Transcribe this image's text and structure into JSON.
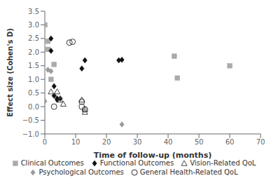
{
  "chart_data": {
    "type": "scatter",
    "title": "",
    "xlabel": "Time of follow-up (months)",
    "ylabel": "Effect size (Cohen's D)",
    "xlim": [
      0,
      70
    ],
    "ylim": [
      -1,
      3.5
    ],
    "xticks": [
      0,
      10,
      20,
      30,
      40,
      50,
      60,
      70
    ],
    "yticks": [
      {
        "value": -1,
        "label": "−1.0"
      },
      {
        "value": -0.5,
        "label": "−0.5"
      },
      {
        "value": 0,
        "label": "0.0"
      },
      {
        "value": 0.5,
        "label": "0.5"
      },
      {
        "value": 1,
        "label": "1.0"
      },
      {
        "value": 1.5,
        "label": "1.5"
      },
      {
        "value": 2,
        "label": "2.0"
      },
      {
        "value": 2.5,
        "label": "2.5"
      },
      {
        "value": 3,
        "label": "3.0"
      },
      {
        "value": 3.5,
        "label": "3.5"
      }
    ],
    "grid": false,
    "legend": "bottom",
    "series": [
      {
        "name": "Clinical Outcomes",
        "color": "#aaaaaa",
        "marker": "square",
        "x": [
          0,
          1,
          1,
          2,
          3,
          42,
          43,
          60
        ],
        "values": [
          3.0,
          2.4,
          2.1,
          1.0,
          1.55,
          1.85,
          1.05,
          1.5
        ]
      },
      {
        "name": "Functional Outcomes",
        "color": "#111111",
        "marker": "diamond",
        "x": [
          2,
          2,
          3,
          3,
          4,
          4,
          5,
          12,
          13,
          24,
          25
        ],
        "values": [
          2.5,
          2.05,
          0.75,
          0.4,
          0.3,
          0.25,
          0.3,
          1.4,
          1.7,
          1.7,
          1.72
        ]
      },
      {
        "name": "Vision-Related QoL",
        "color": "#444444",
        "marker": "open_triangle",
        "x": [
          2,
          4,
          5,
          6,
          12,
          13,
          13
        ],
        "values": [
          0.55,
          0.55,
          0.25,
          0.1,
          0.25,
          -0.1,
          -0.2
        ]
      },
      {
        "name": "Psychological Outcomes",
        "color": "#999999",
        "marker": "diamond",
        "x": [
          0,
          1,
          2,
          25
        ],
        "values": [
          0.2,
          1.35,
          1.3,
          -0.65
        ]
      },
      {
        "name": "General Health-Related QoL",
        "color": "#333333",
        "marker": "open_circle",
        "x": [
          3,
          8,
          9,
          12,
          12,
          13
        ],
        "values": [
          0.0,
          2.35,
          2.38,
          0.0,
          0.18,
          -0.1
        ]
      }
    ]
  }
}
